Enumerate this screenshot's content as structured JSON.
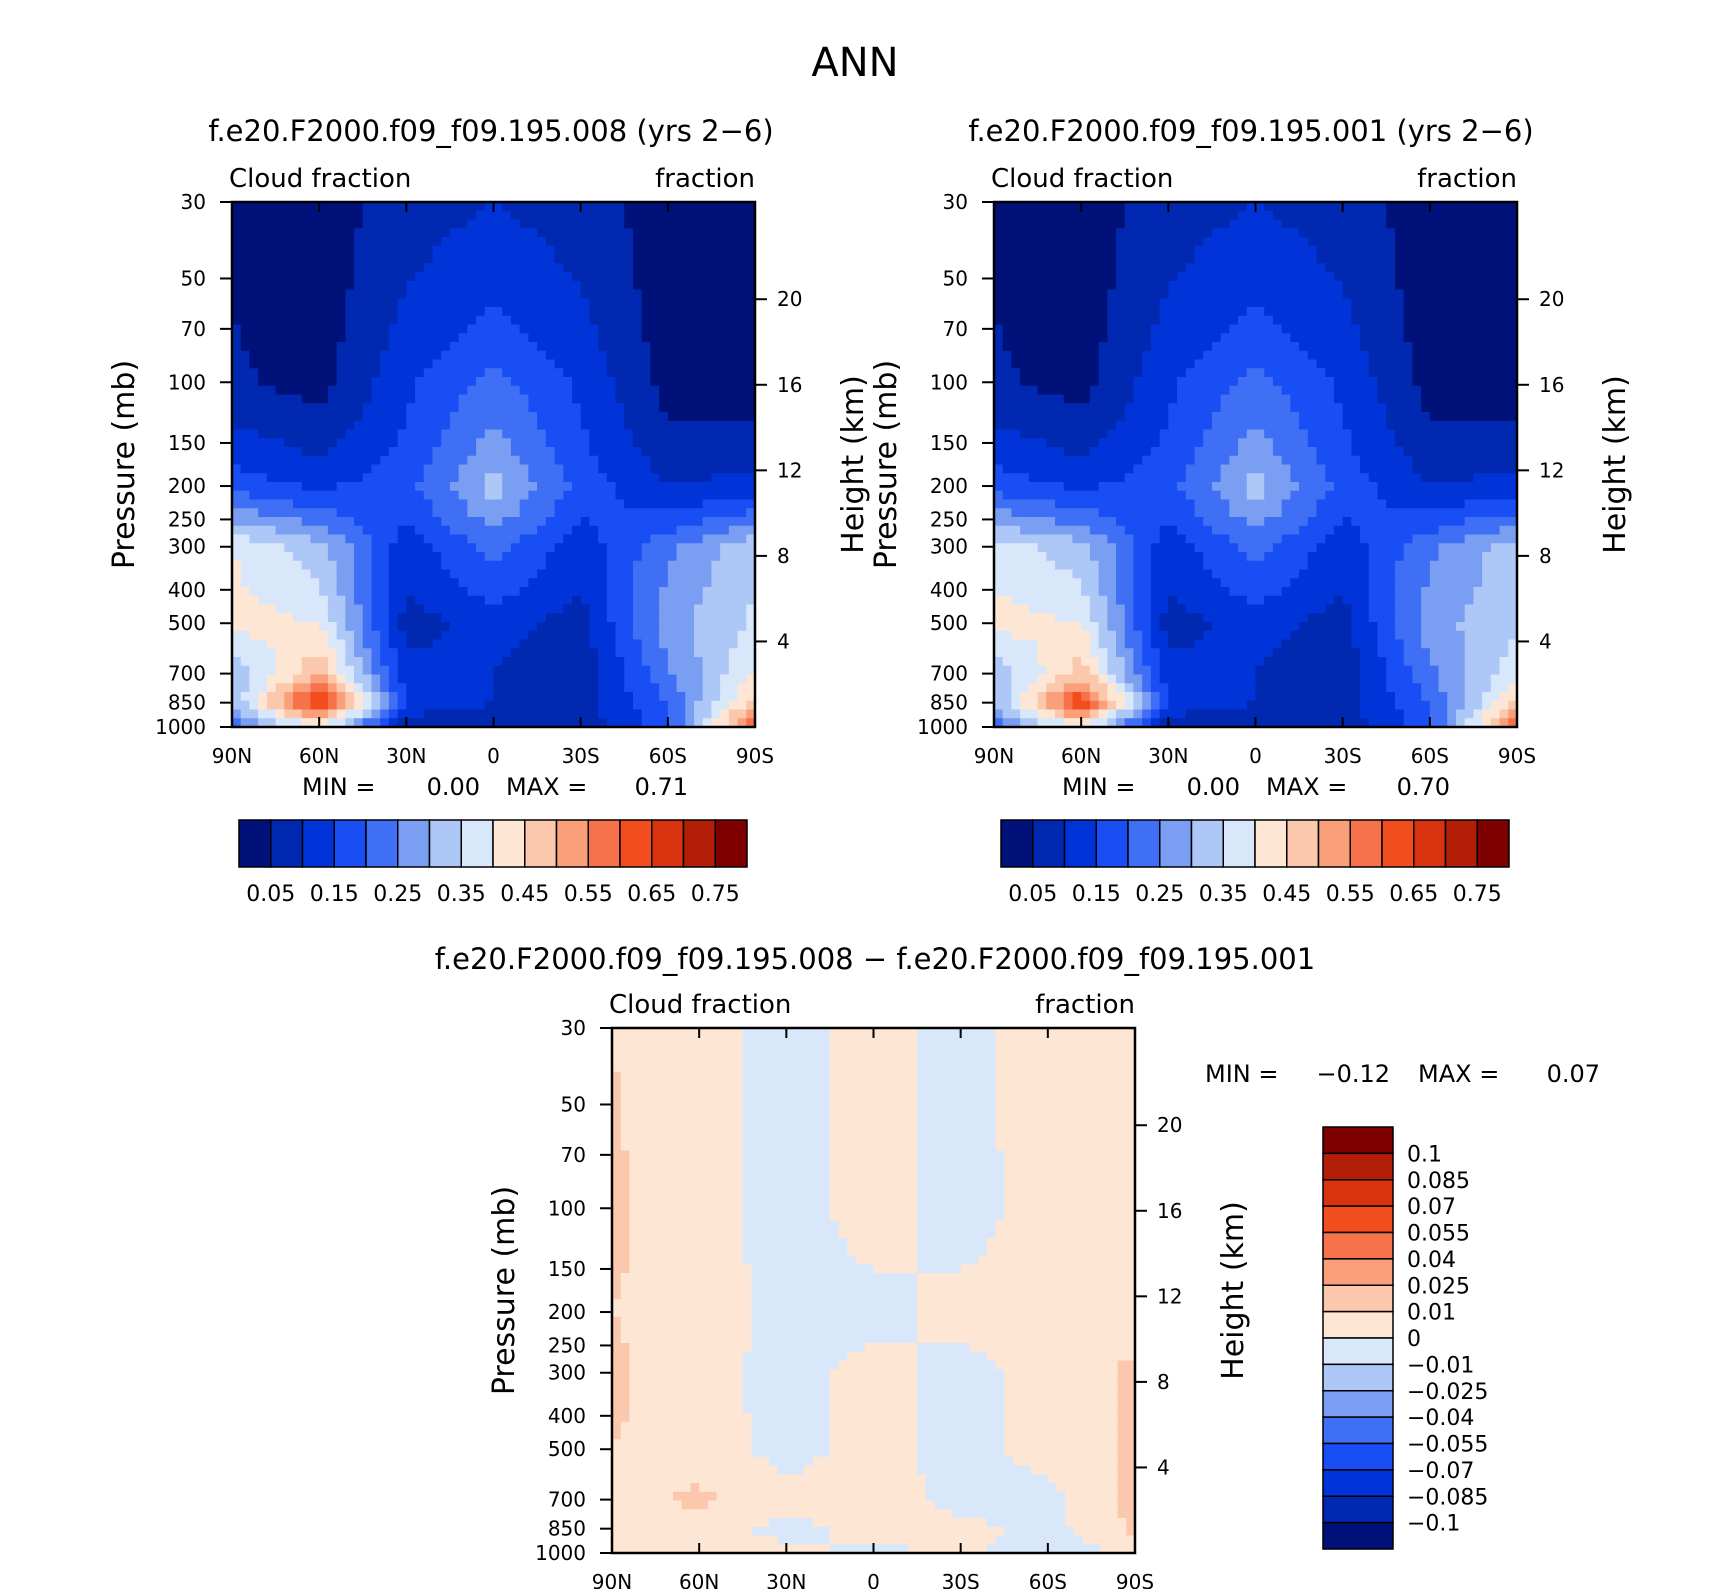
{
  "page": {
    "title": "ANN"
  },
  "palettes": {
    "abs": [
      "#00117a",
      "#0028b0",
      "#0034d8",
      "#1a4ef5",
      "#3f6ff5",
      "#7a9ef2",
      "#adc8f7",
      "#d8e8fa",
      "#fde6d4",
      "#fbc8ae",
      "#f9a07a",
      "#f7714a",
      "#f24e1d",
      "#d9320e",
      "#b21e08",
      "#7e0000"
    ],
    "diff": [
      "#00117a",
      "#0028b0",
      "#0034d8",
      "#1a4ef5",
      "#3f6ff5",
      "#7a9ef2",
      "#adc8f7",
      "#d8e8fa",
      "#fde6d4",
      "#fbc8ae",
      "#f9a07a",
      "#f7714a",
      "#f24e1d",
      "#d9320e",
      "#b21e08",
      "#7e0000"
    ]
  },
  "chart_data": [
    {
      "id": "panel-008",
      "type": "heatmap",
      "title": "f.e20.F2000.f09_f09.195.008 (yrs 2−6)",
      "left_label": "Cloud fraction",
      "right_label": "fraction",
      "ylabel": "Pressure (mb)",
      "y2label": "Height (km)",
      "x_ticks": [
        "90N",
        "60N",
        "30N",
        "0",
        "30S",
        "60S",
        "90S"
      ],
      "y_ticks": [
        "30",
        "50",
        "70",
        "100",
        "150",
        "200",
        "250",
        "300",
        "400",
        "500",
        "700",
        "850",
        "1000"
      ],
      "y_tick_values": [
        30,
        50,
        70,
        100,
        150,
        200,
        250,
        300,
        400,
        500,
        700,
        850,
        1000
      ],
      "y2_ticks": [
        "20",
        "16",
        "12",
        "8",
        "4"
      ],
      "y2_tick_values": [
        20,
        16,
        12,
        8,
        4
      ],
      "min_label": "MIN =",
      "min_value": "0.00",
      "max_label": "MAX =",
      "max_value": "0.71",
      "legend_labels": [
        "0.05",
        "0.15",
        "0.25",
        "0.35",
        "0.45",
        "0.55",
        "0.65",
        "0.75"
      ],
      "field": {
        "lat": [
          -90,
          -60,
          -30,
          0,
          30,
          60,
          90
        ],
        "pressure": [
          30,
          100,
          200,
          300,
          500,
          700,
          850,
          1000
        ],
        "values": [
          [
            0.02,
            0.02,
            0.08,
            0.1,
            0.08,
            0.02,
            0.04
          ],
          [
            0.02,
            0.03,
            0.14,
            0.22,
            0.14,
            0.03,
            0.06
          ],
          [
            0.12,
            0.1,
            0.18,
            0.32,
            0.18,
            0.14,
            0.18
          ],
          [
            0.34,
            0.24,
            0.12,
            0.22,
            0.12,
            0.32,
            0.4
          ],
          [
            0.36,
            0.28,
            0.08,
            0.12,
            0.08,
            0.4,
            0.42
          ],
          [
            0.4,
            0.24,
            0.06,
            0.1,
            0.12,
            0.5,
            0.3
          ],
          [
            0.48,
            0.2,
            0.08,
            0.1,
            0.14,
            0.68,
            0.3
          ],
          [
            0.62,
            0.18,
            0.06,
            0.04,
            0.06,
            0.4,
            0.22
          ]
        ]
      }
    },
    {
      "id": "panel-001",
      "type": "heatmap",
      "title": "f.e20.F2000.f09_f09.195.001 (yrs 2−6)",
      "left_label": "Cloud fraction",
      "right_label": "fraction",
      "ylabel": "Pressure (mb)",
      "y2label": "Height (km)",
      "x_ticks": [
        "90N",
        "60N",
        "30N",
        "0",
        "30S",
        "60S",
        "90S"
      ],
      "y_ticks": [
        "30",
        "50",
        "70",
        "100",
        "150",
        "200",
        "250",
        "300",
        "400",
        "500",
        "700",
        "850",
        "1000"
      ],
      "y_tick_values": [
        30,
        50,
        70,
        100,
        150,
        200,
        250,
        300,
        400,
        500,
        700,
        850,
        1000
      ],
      "y2_ticks": [
        "20",
        "16",
        "12",
        "8",
        "4"
      ],
      "y2_tick_values": [
        20,
        16,
        12,
        8,
        4
      ],
      "min_label": "MIN =",
      "min_value": "0.00",
      "max_label": "MAX =",
      "max_value": "0.70",
      "legend_labels": [
        "0.05",
        "0.15",
        "0.25",
        "0.35",
        "0.45",
        "0.55",
        "0.65",
        "0.75"
      ],
      "field": {
        "lat": [
          -90,
          -60,
          -30,
          0,
          30,
          60,
          90
        ],
        "pressure": [
          30,
          100,
          200,
          300,
          500,
          700,
          850,
          1000
        ],
        "values": [
          [
            0.02,
            0.02,
            0.08,
            0.1,
            0.08,
            0.02,
            0.04
          ],
          [
            0.02,
            0.03,
            0.14,
            0.22,
            0.14,
            0.03,
            0.06
          ],
          [
            0.12,
            0.1,
            0.18,
            0.32,
            0.18,
            0.14,
            0.18
          ],
          [
            0.33,
            0.24,
            0.12,
            0.22,
            0.12,
            0.32,
            0.38
          ],
          [
            0.34,
            0.28,
            0.08,
            0.12,
            0.08,
            0.4,
            0.42
          ],
          [
            0.38,
            0.24,
            0.06,
            0.1,
            0.12,
            0.48,
            0.3
          ],
          [
            0.46,
            0.2,
            0.08,
            0.1,
            0.14,
            0.66,
            0.3
          ],
          [
            0.6,
            0.18,
            0.06,
            0.04,
            0.06,
            0.4,
            0.22
          ]
        ]
      }
    },
    {
      "id": "panel-diff",
      "type": "heatmap",
      "title": "f.e20.F2000.f09_f09.195.008 − f.e20.F2000.f09_f09.195.001",
      "left_label": "Cloud fraction",
      "right_label": "fraction",
      "ylabel": "Pressure (mb)",
      "y2label": "Height (km)",
      "x_ticks": [
        "90N",
        "60N",
        "30N",
        "0",
        "30S",
        "60S",
        "90S"
      ],
      "y_ticks": [
        "30",
        "50",
        "70",
        "100",
        "150",
        "200",
        "250",
        "300",
        "400",
        "500",
        "700",
        "850",
        "1000"
      ],
      "y_tick_values": [
        30,
        50,
        70,
        100,
        150,
        200,
        250,
        300,
        400,
        500,
        700,
        850,
        1000
      ],
      "y2_ticks": [
        "20",
        "16",
        "12",
        "8",
        "4"
      ],
      "y2_tick_values": [
        20,
        16,
        12,
        8,
        4
      ],
      "min_label": "MIN =",
      "min_value": "−0.12",
      "max_label": "MAX =",
      "max_value": "0.07",
      "legend_labels": [
        "0.1",
        "0.085",
        "0.07",
        "0.055",
        "0.04",
        "0.025",
        "0.01",
        "0",
        "−0.01",
        "−0.025",
        "−0.04",
        "−0.055",
        "−0.07",
        "−0.085",
        "−0.1"
      ],
      "field": {
        "lat": [
          -90,
          -60,
          -30,
          0,
          30,
          60,
          90
        ],
        "pressure": [
          30,
          100,
          200,
          300,
          500,
          700,
          850,
          1000
        ],
        "values": [
          [
            0.004,
            0.006,
            -0.004,
            0.004,
            -0.004,
            0.004,
            0.01
          ],
          [
            0.006,
            0.004,
            -0.004,
            0.004,
            -0.004,
            0.004,
            0.012
          ],
          [
            0.006,
            0.004,
            0.004,
            -0.004,
            -0.004,
            0.006,
            0.01
          ],
          [
            0.012,
            0.004,
            -0.004,
            0.004,
            -0.004,
            0.004,
            0.012
          ],
          [
            0.012,
            0.004,
            -0.004,
            0.004,
            -0.004,
            0.006,
            0.01
          ],
          [
            0.014,
            -0.004,
            -0.004,
            0.006,
            0.004,
            0.012,
            0.006
          ],
          [
            0.012,
            -0.004,
            0.004,
            0.004,
            -0.004,
            0.006,
            0.004
          ],
          [
            0.004,
            -0.01,
            0.004,
            -0.004,
            0.004,
            0.006,
            0.004
          ]
        ]
      }
    }
  ]
}
